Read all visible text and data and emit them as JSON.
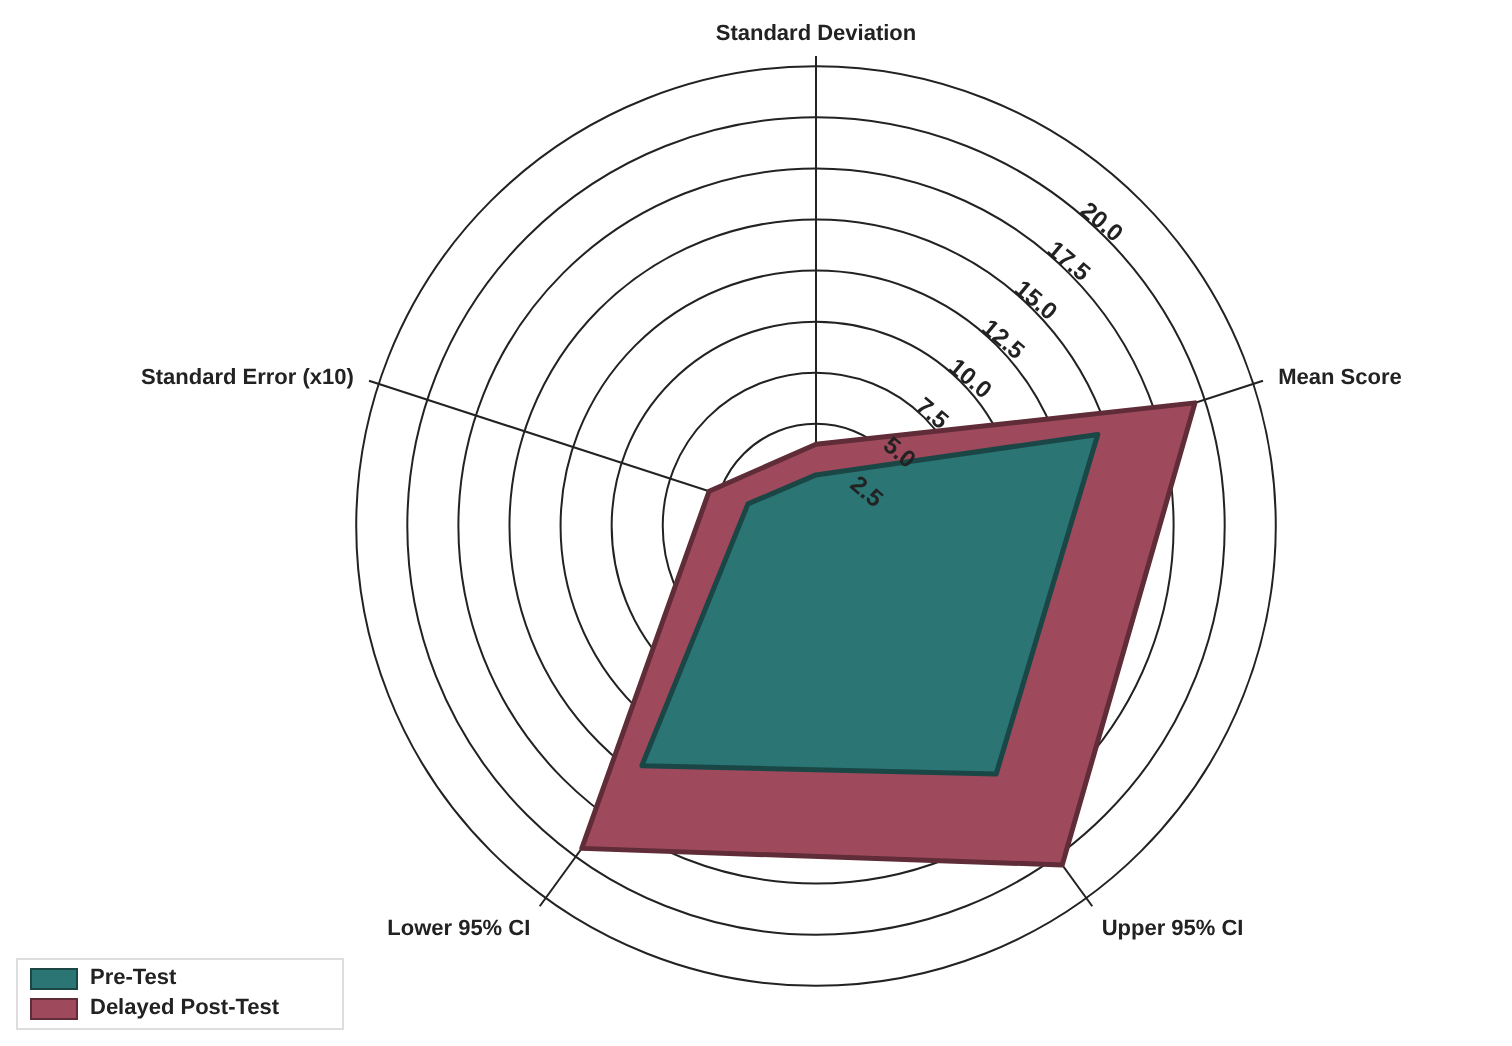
{
  "chart_data": {
    "type": "radar",
    "categories": [
      "Standard Deviation",
      "Mean Score",
      "Upper 95% CI",
      "Lower 95% CI",
      "Standard Error (x10)"
    ],
    "series": [
      {
        "name": "Pre-Test",
        "color": "#2b7575",
        "values": [
          2.5,
          14.5,
          15,
          14.5,
          3.5
        ]
      },
      {
        "name": "Delayed Post-Test",
        "color": "#9e4a5c",
        "values": [
          4,
          19.5,
          20.5,
          19.5,
          5.5
        ]
      }
    ],
    "ylim": [
      0,
      22.5
    ],
    "yticks": [
      2.5,
      {
        "value": 5,
        "label": "5.0"
      },
      7.5,
      {
        "value": 10,
        "label": "10.0"
      },
      12.5,
      {
        "value": 15,
        "label": "15.0"
      },
      17.5,
      {
        "value": 20,
        "label": "20.0"
      }
    ],
    "grid": true,
    "legend": "bottom left"
  }
}
